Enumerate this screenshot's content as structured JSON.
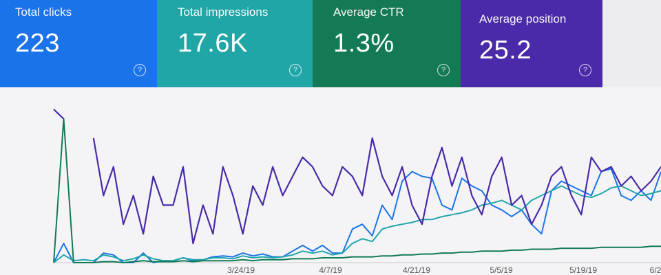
{
  "metrics": [
    {
      "label": "Total clicks",
      "value": "223",
      "color": "#1a73e8"
    },
    {
      "label": "Total impressions",
      "value": "17.6K",
      "color": "#21a6a8"
    },
    {
      "label": "Average CTR",
      "value": "1.3%",
      "color": "#137a55"
    },
    {
      "label": "Average position",
      "value": "25.2",
      "color": "#4a2aa8"
    }
  ],
  "help_glyph": "?",
  "chart_data": {
    "type": "line",
    "x_tick_labels": [
      "3/24/19",
      "4/7/19",
      "4/21/19",
      "5/5/19",
      "5/19/19",
      "6/2"
    ],
    "series": [
      {
        "color": "#1a73e8",
        "values": [
          0,
          20,
          0,
          0,
          0,
          10,
          8,
          0,
          0,
          10,
          0,
          2,
          2,
          5,
          2,
          3,
          6,
          7,
          6,
          10,
          7,
          9,
          6,
          6,
          12,
          18,
          12,
          18,
          10,
          10,
          35,
          40,
          28,
          60,
          45,
          85,
          95,
          90,
          88,
          60,
          55,
          88,
          80,
          75,
          60,
          55,
          48,
          55,
          40,
          30,
          75,
          85,
          80,
          75,
          70,
          95,
          98,
          70,
          65,
          75,
          65,
          95
        ]
      },
      {
        "color": "#21a6a8",
        "values": [
          0,
          8,
          2,
          3,
          2,
          8,
          6,
          2,
          4,
          8,
          4,
          2,
          2,
          5,
          3,
          3,
          5,
          5,
          4,
          7,
          5,
          6,
          5,
          6,
          8,
          12,
          10,
          12,
          8,
          10,
          20,
          25,
          22,
          35,
          38,
          40,
          42,
          45,
          45,
          48,
          50,
          52,
          55,
          60,
          62,
          65,
          60,
          55,
          65,
          70,
          75,
          80,
          75,
          70,
          68,
          72,
          78,
          80,
          75,
          70,
          72,
          75
        ]
      },
      {
        "color": "#137a55",
        "values": [
          0,
          150,
          0,
          0,
          0,
          1,
          1,
          0,
          1,
          2,
          1,
          1,
          1,
          2,
          1,
          2,
          2,
          2,
          2,
          3,
          2,
          3,
          3,
          3,
          4,
          4,
          4,
          5,
          5,
          5,
          6,
          6,
          6,
          7,
          7,
          8,
          8,
          9,
          9,
          10,
          10,
          11,
          11,
          12,
          12,
          12,
          13,
          13,
          14,
          14,
          14,
          15,
          15,
          15,
          15,
          16,
          16,
          16,
          16,
          16,
          17,
          17
        ]
      },
      {
        "color": "#4a2aa8",
        "values": [
          160,
          150,
          null,
          null,
          130,
          70,
          100,
          40,
          70,
          30,
          90,
          60,
          60,
          100,
          20,
          60,
          30,
          100,
          70,
          30,
          80,
          60,
          100,
          70,
          90,
          110,
          100,
          80,
          70,
          100,
          90,
          70,
          130,
          90,
          70,
          100,
          60,
          40,
          90,
          120,
          80,
          110,
          70,
          50,
          90,
          110,
          60,
          70,
          40,
          60,
          90,
          100,
          70,
          50,
          110,
          95,
          100,
          80,
          90,
          75,
          85,
          100
        ]
      }
    ]
  }
}
